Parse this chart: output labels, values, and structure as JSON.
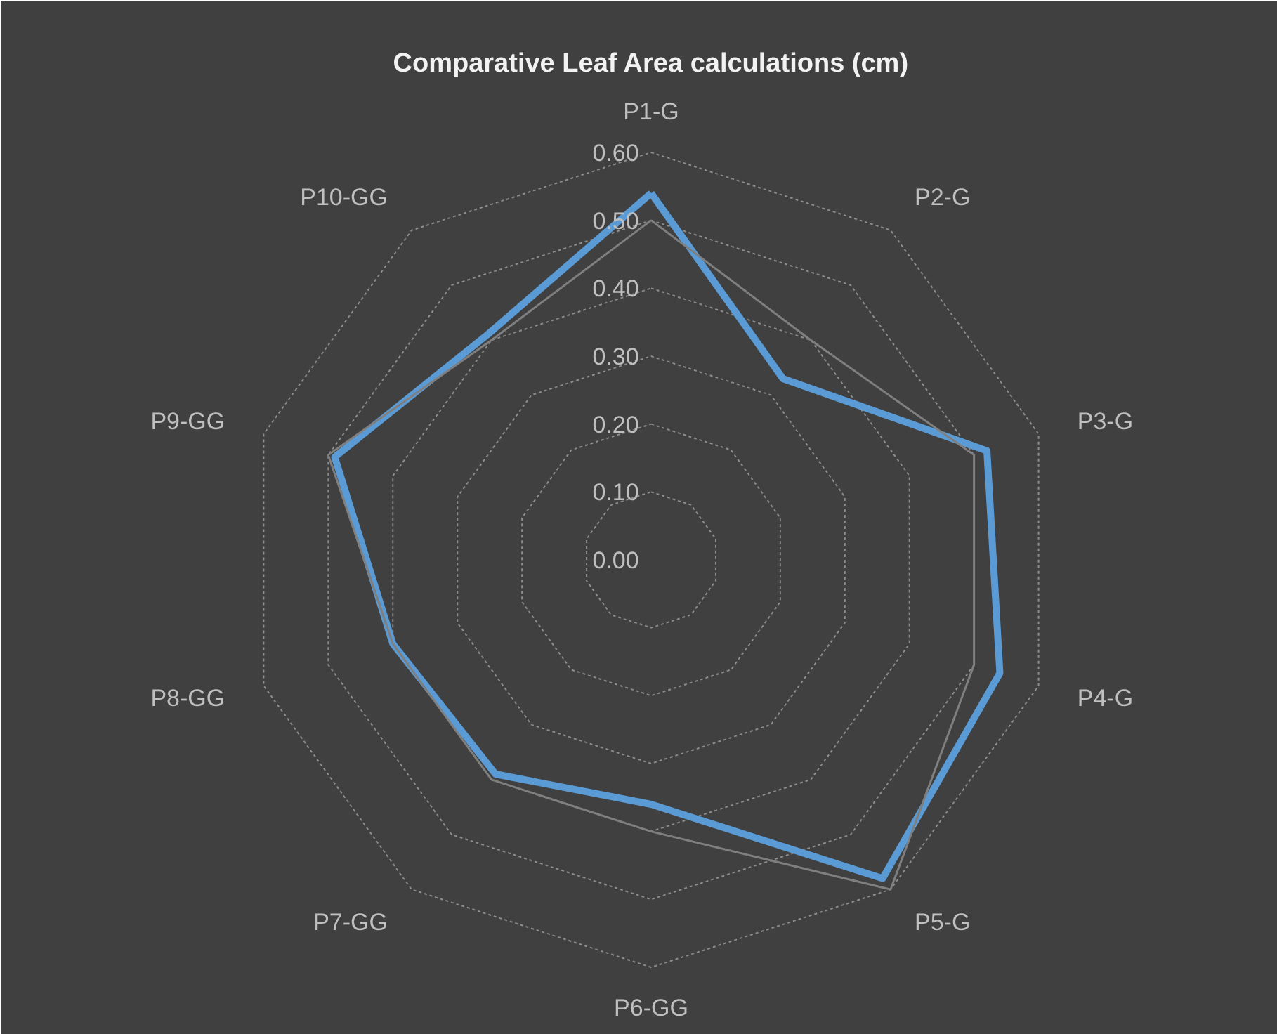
{
  "chart_data": {
    "type": "radar",
    "title": "Comparative Leaf Area calculations (cm)",
    "categories": [
      "P1-G",
      "P2-G",
      "P3-G",
      "P4-G",
      "P5-G",
      "P6-GG",
      "P7-GG",
      "P8-GG",
      "P9-GG",
      "P10-GG"
    ],
    "series": [
      {
        "color": "#5b9bd5",
        "values": [
          0.54,
          0.33,
          0.52,
          0.54,
          0.58,
          0.36,
          0.39,
          0.4,
          0.49,
          0.41
        ]
      },
      {
        "color": "#7f7f7f",
        "values": [
          0.5,
          0.4,
          0.5,
          0.5,
          0.6,
          0.4,
          0.4,
          0.4,
          0.5,
          0.4
        ]
      }
    ],
    "ylim": [
      0,
      0.6
    ],
    "yticks": [
      {
        "value": 0,
        "label": "0.00"
      },
      {
        "value": 0.1,
        "label": "0.10"
      },
      {
        "value": 0.2,
        "label": "0.20"
      },
      {
        "value": 0.3,
        "label": "0.30"
      },
      {
        "value": 0.4,
        "label": "0.40"
      },
      {
        "value": 0.5,
        "label": "0.50"
      },
      {
        "value": 0.6,
        "label": "0.60"
      }
    ],
    "grid": true
  }
}
